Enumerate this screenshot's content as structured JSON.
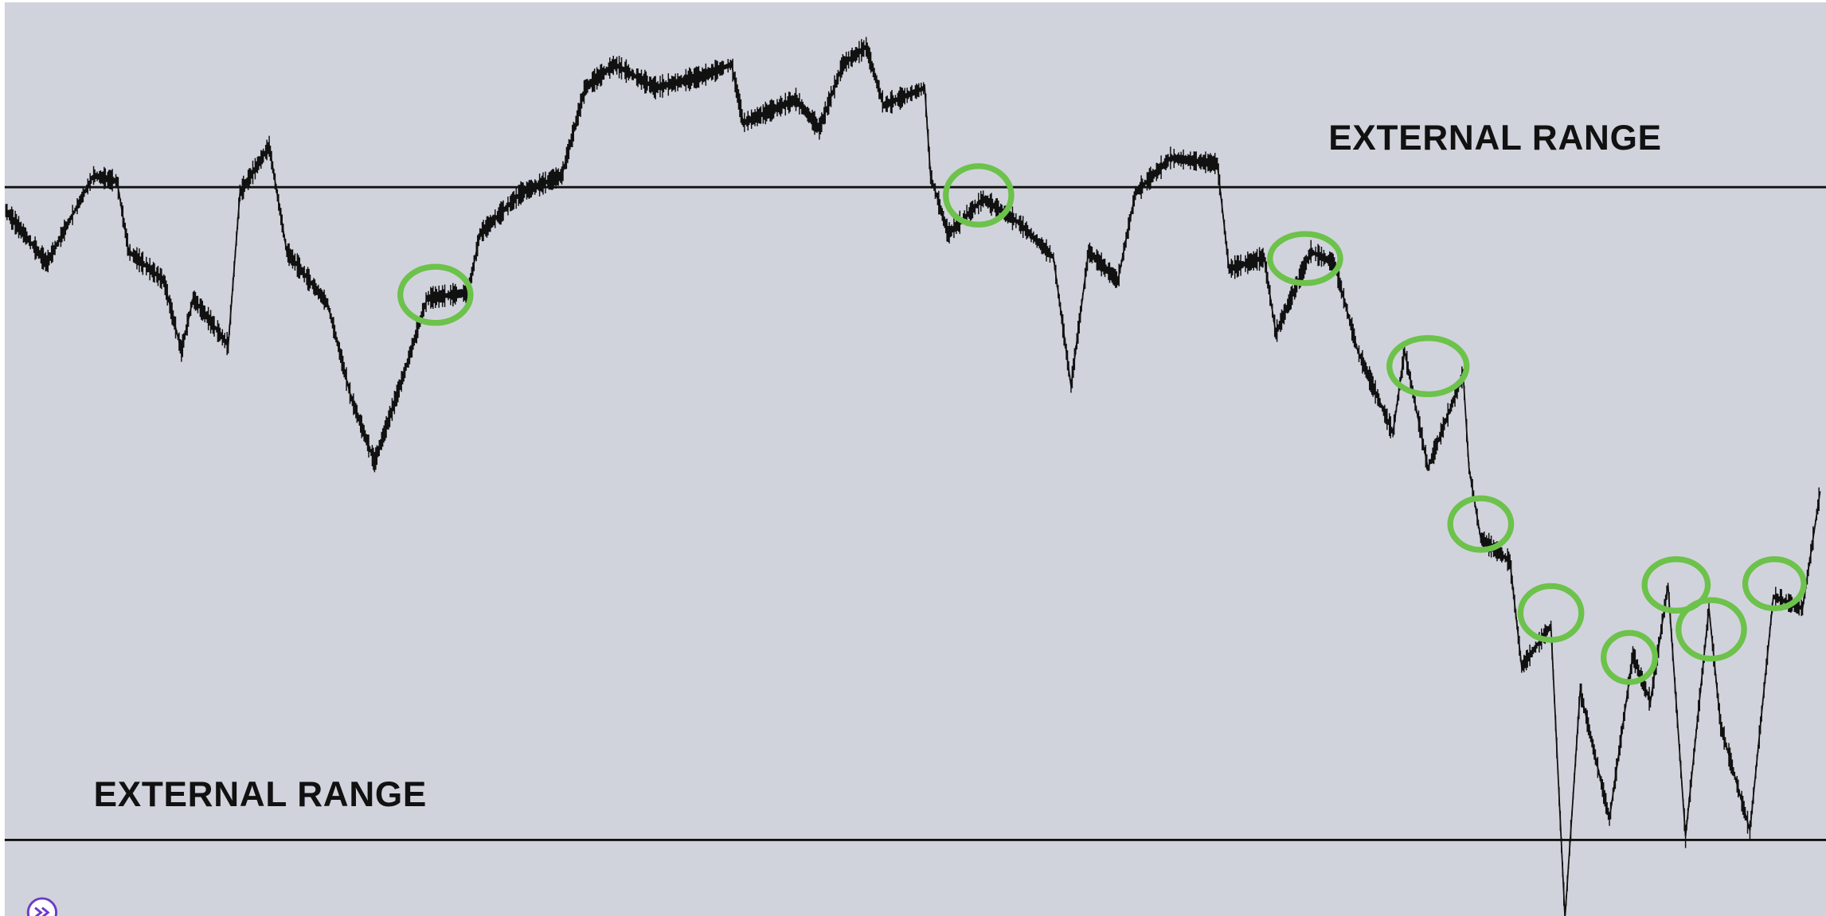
{
  "annotations": {
    "top_label": "EXTERNAL RANGE",
    "bottom_label": "EXTERNAL RANGE"
  }
}
